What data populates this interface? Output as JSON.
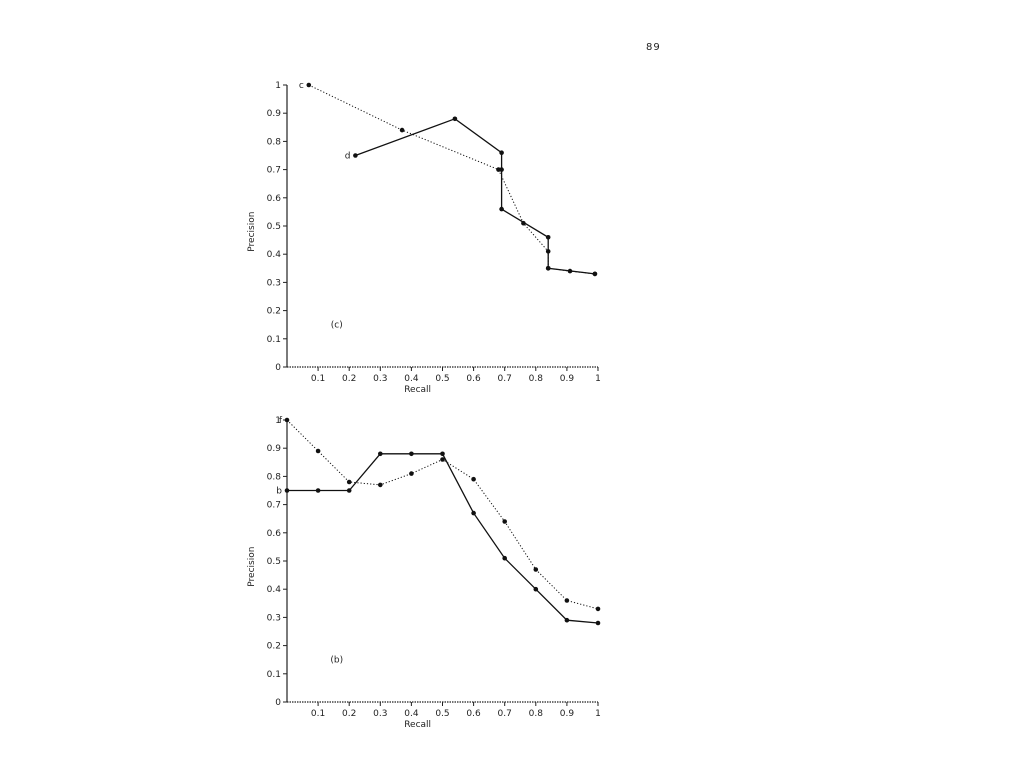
{
  "page": {
    "number": "89"
  },
  "chart_data": [
    {
      "type": "line",
      "panel_label": "(c)",
      "xlabel": "Recall",
      "ylabel": "Precision",
      "xlim": [
        0,
        1
      ],
      "ylim": [
        0,
        1
      ],
      "xticks": [
        "0.1",
        "0.2",
        "0.3",
        "0.4",
        "0.5",
        "0.6",
        "0.7",
        "0.8",
        "0.9",
        "1"
      ],
      "yticks": [
        "0",
        "0.1",
        "0.2",
        "0.3",
        "0.4",
        "0.5",
        "0.6",
        "0.7",
        "0.8",
        "0.9",
        "1"
      ],
      "grid": false,
      "legend": "none",
      "series": [
        {
          "name": "c",
          "style": "dotted",
          "x": [
            0.07,
            0.37,
            0.68,
            0.76,
            0.84,
            0.84,
            0.91,
            0.99
          ],
          "y": [
            1.0,
            0.84,
            0.7,
            0.51,
            0.41,
            0.35,
            0.34,
            0.33
          ]
        },
        {
          "name": "d",
          "style": "solid",
          "x": [
            0.22,
            0.54,
            0.69,
            0.69,
            0.69,
            0.84,
            0.84,
            0.99
          ],
          "y": [
            0.75,
            0.88,
            0.76,
            0.7,
            0.56,
            0.46,
            0.35,
            0.33
          ]
        }
      ]
    },
    {
      "type": "line",
      "panel_label": "(b)",
      "xlabel": "Recall",
      "ylabel": "Precision",
      "xlim": [
        0,
        1
      ],
      "ylim": [
        0,
        1
      ],
      "xticks": [
        "0.1",
        "0.2",
        "0.3",
        "0.4",
        "0.5",
        "0.6",
        "0.7",
        "0.8",
        "0.9",
        "1"
      ],
      "yticks": [
        "0",
        "0.1",
        "0.2",
        "0.3",
        "0.4",
        "0.5",
        "0.6",
        "0.7",
        "0.8",
        "0.9",
        "1"
      ],
      "grid": false,
      "legend": "none",
      "series": [
        {
          "name": "f",
          "style": "dotted",
          "x": [
            0.0,
            0.1,
            0.2,
            0.3,
            0.4,
            0.5,
            0.6,
            0.7,
            0.8,
            0.9,
            1.0
          ],
          "y": [
            1.0,
            0.89,
            0.78,
            0.77,
            0.81,
            0.86,
            0.79,
            0.64,
            0.47,
            0.36,
            0.33
          ]
        },
        {
          "name": "b",
          "style": "solid",
          "x": [
            0.0,
            0.1,
            0.2,
            0.3,
            0.4,
            0.5,
            0.6,
            0.7,
            0.8,
            0.9,
            1.0
          ],
          "y": [
            0.75,
            0.75,
            0.75,
            0.88,
            0.88,
            0.88,
            0.67,
            0.51,
            0.4,
            0.29,
            0.28
          ]
        }
      ]
    }
  ]
}
